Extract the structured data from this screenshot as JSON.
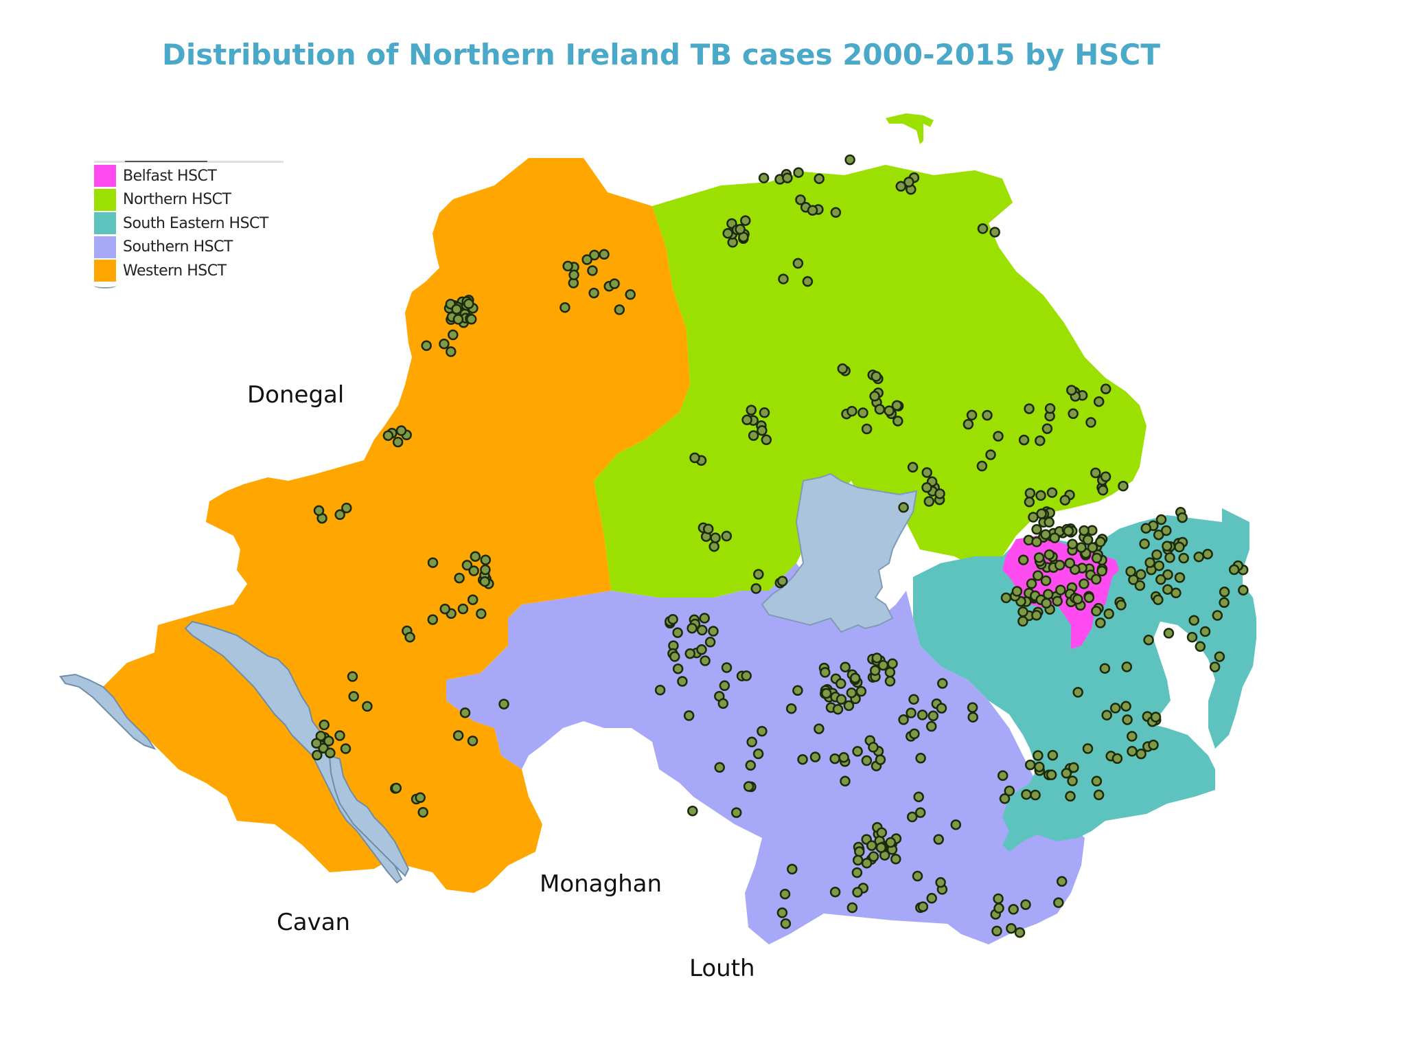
{
  "title": "Distribution of Northern Ireland TB cases 2000-2015 by HSCT",
  "legend": {
    "items": [
      {
        "label": "Belfast HSCT",
        "color": "#ff4cf0"
      },
      {
        "label": "Northern HSCT",
        "color": "#9be000"
      },
      {
        "label": "South Eastern HSCT",
        "color": "#5ec2bf"
      },
      {
        "label": "Southern HSCT",
        "color": "#a8a8f8"
      },
      {
        "label": "Western HSCT",
        "color": "#ffa600"
      }
    ]
  },
  "places": {
    "donegal": "Donegal",
    "monaghan": "Monaghan",
    "cavan": "Cavan",
    "louth": "Louth"
  },
  "colors": {
    "water": "#a9c4dc",
    "point_fill": "#7f9a46",
    "point_stroke": "#1c2a0c",
    "title": "#4aa8c8"
  }
}
